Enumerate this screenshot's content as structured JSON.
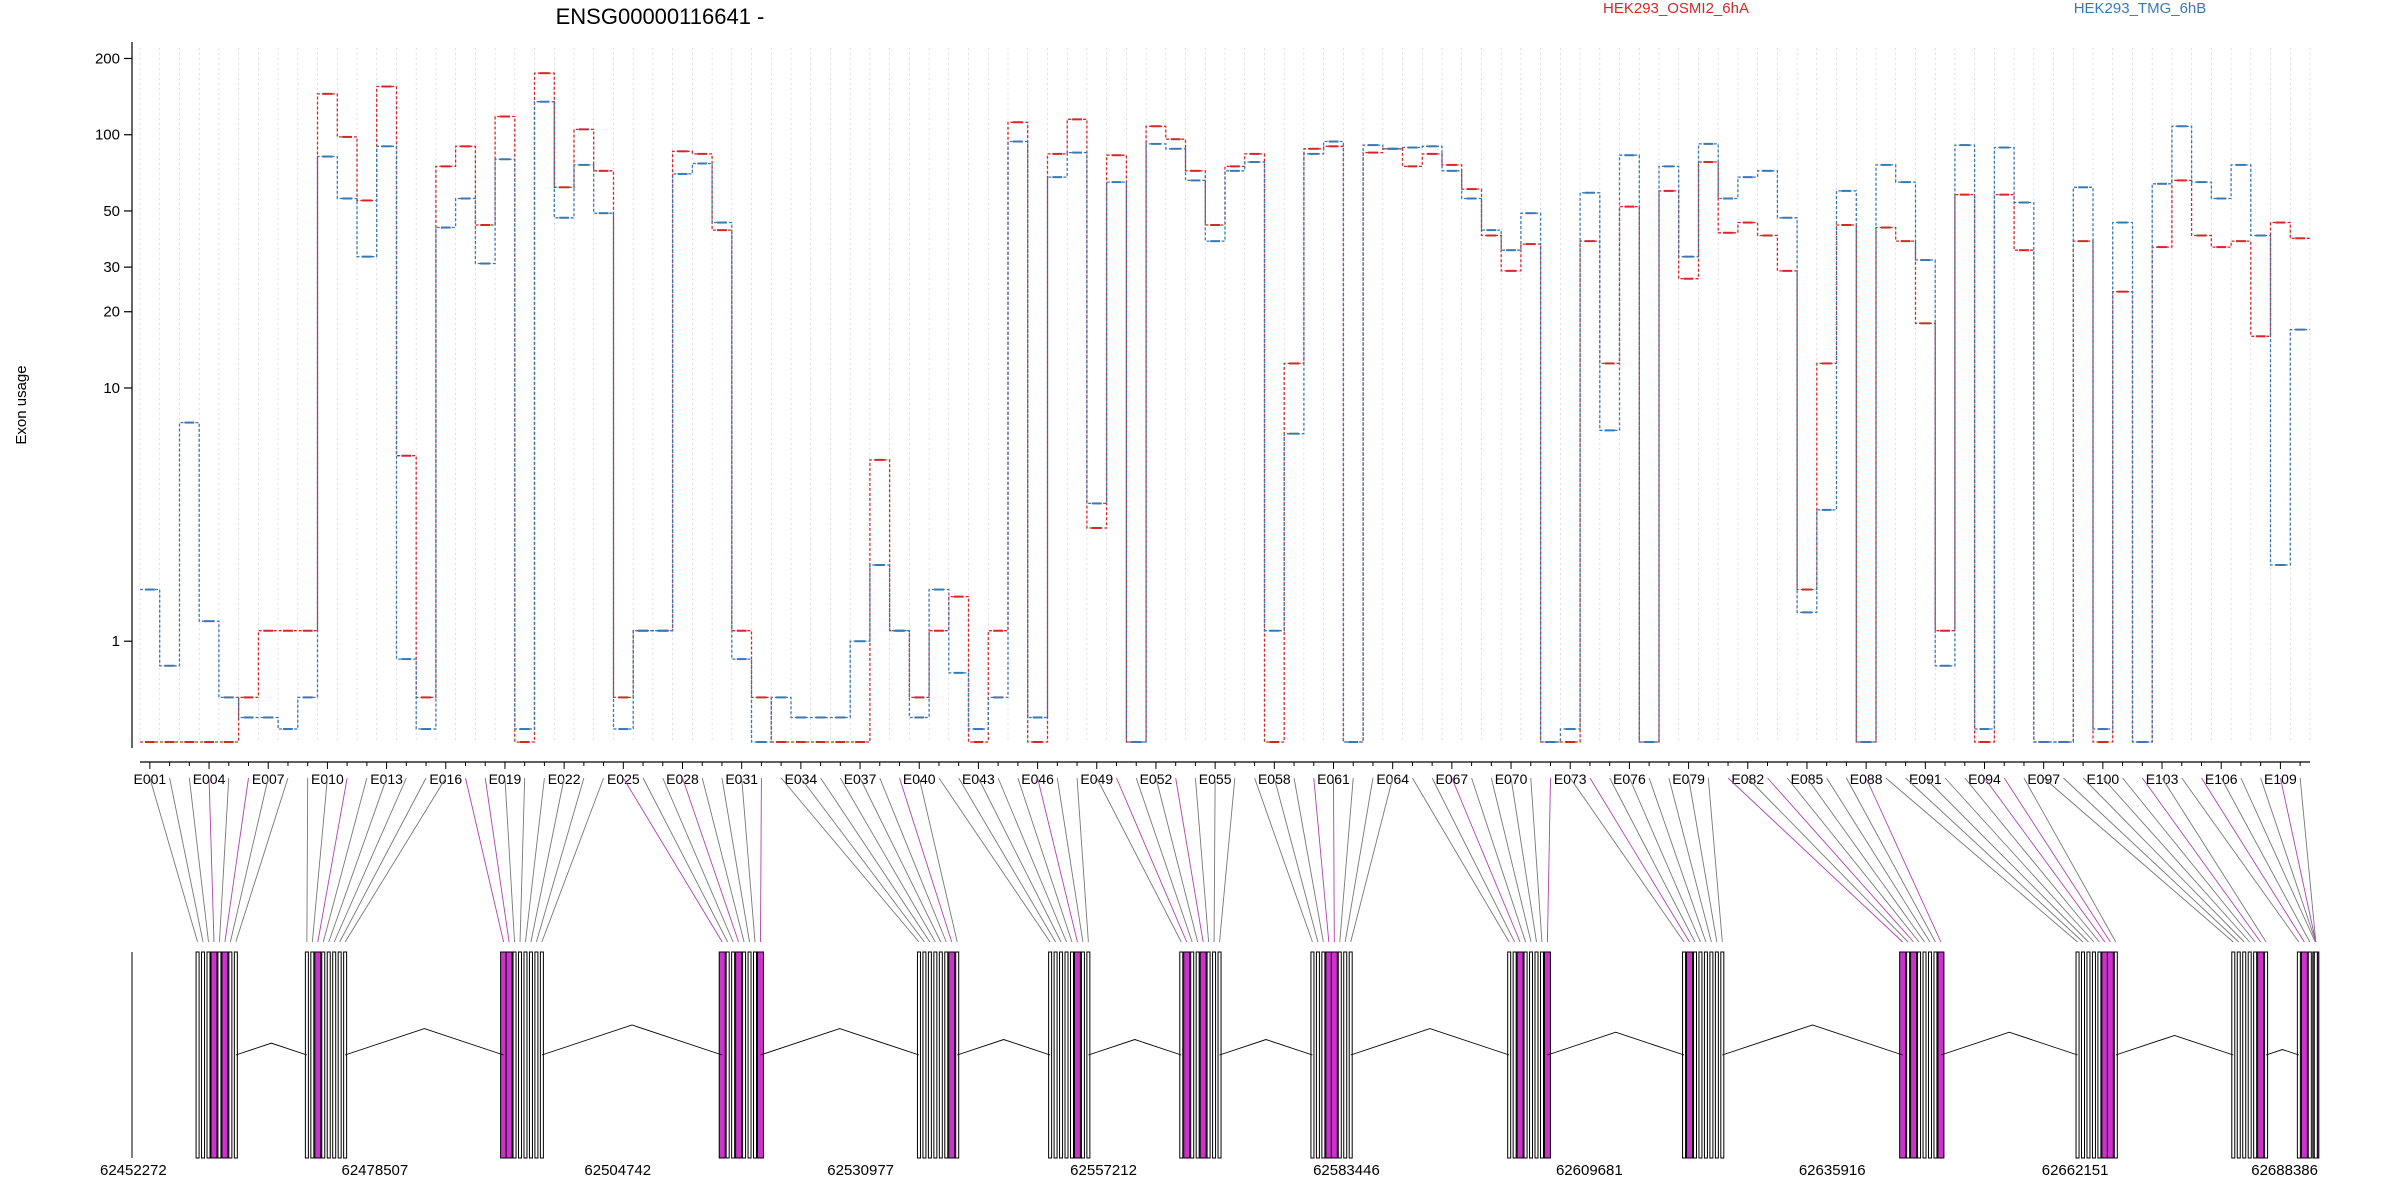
{
  "chart_data": {
    "type": "line",
    "title": "ENSG00000116641 -",
    "ylabel": "Exon usage",
    "yscale": "log",
    "ylim": [
      0.4,
      220
    ],
    "yticks": [
      1,
      10,
      20,
      30,
      50,
      100,
      200
    ],
    "series": [
      {
        "name": "HEK293_OSMI2_6hA",
        "color": "#d62728",
        "values": [
          0.4,
          0.4,
          0.4,
          0.4,
          0.4,
          0.6,
          1.1,
          1.1,
          1.1,
          145,
          98,
          55,
          155,
          5.4,
          0.6,
          75,
          90,
          44,
          118,
          0.4,
          175,
          62,
          105,
          72,
          0.6,
          1.1,
          1.1,
          86,
          84,
          42,
          1.1,
          0.6,
          0.4,
          0.4,
          0.4,
          0.4,
          0.4,
          5.2,
          1.1,
          0.6,
          1.1,
          1.5,
          0.4,
          1.1,
          112,
          0.4,
          84,
          115,
          2.8,
          83,
          0.4,
          108,
          96,
          72,
          44,
          75,
          84,
          0.4,
          12.5,
          88,
          90,
          0.4,
          85,
          88,
          75,
          84,
          76,
          61,
          40,
          29,
          37,
          0.4,
          0.4,
          38,
          12.5,
          52,
          0.4,
          60,
          27,
          78,
          41,
          45,
          40,
          29,
          1.6,
          12.5,
          44,
          0.4,
          43,
          38,
          18,
          1.1,
          58,
          0.4,
          58,
          35,
          0.4,
          0.4,
          38,
          0.4,
          24,
          0.4,
          36,
          66,
          40,
          36,
          38,
          16,
          45,
          39
        ]
      },
      {
        "name": "HEK293_TMG_6hB",
        "color": "#3a78b4",
        "values": [
          1.6,
          0.8,
          7.3,
          1.2,
          0.6,
          0.5,
          0.5,
          0.45,
          0.6,
          82,
          56,
          33,
          90,
          0.85,
          0.45,
          43,
          56,
          31,
          80,
          0.45,
          135,
          47,
          76,
          49,
          0.45,
          1.1,
          1.1,
          70,
          77,
          45,
          0.85,
          0.4,
          0.6,
          0.5,
          0.5,
          0.5,
          1.0,
          2.0,
          1.1,
          0.5,
          1.6,
          0.75,
          0.45,
          0.6,
          94,
          0.5,
          68,
          85,
          3.5,
          65,
          0.4,
          92,
          88,
          66,
          38,
          72,
          78,
          1.1,
          6.6,
          84,
          94,
          0.4,
          91,
          88,
          89,
          90,
          72,
          56,
          42,
          35,
          49,
          0.4,
          0.45,
          59,
          6.8,
          83,
          0.4,
          75,
          33,
          92,
          56,
          68,
          72,
          47,
          1.3,
          3.3,
          60,
          0.4,
          76,
          65,
          32,
          0.8,
          91,
          0.45,
          89,
          54,
          0.4,
          0.4,
          62,
          0.45,
          45,
          0.4,
          64,
          108,
          65,
          56,
          76,
          40,
          2.0,
          17
        ]
      }
    ],
    "exon_labels": [
      "E001",
      "E004",
      "E007",
      "E010",
      "E013",
      "E016",
      "E019",
      "E022",
      "E025",
      "E028",
      "E031",
      "E034",
      "E037",
      "E040",
      "E043",
      "E046",
      "E049",
      "E052",
      "E055",
      "E058",
      "E061",
      "E064",
      "E067",
      "E070",
      "E073",
      "E076",
      "E079",
      "E082",
      "E085",
      "E088",
      "E091",
      "E094",
      "E097",
      "E100",
      "E103",
      "E106",
      "E109"
    ],
    "genomic_ticks": [
      "62452272",
      "62478507",
      "62504742",
      "62530977",
      "62557212",
      "62583446",
      "62609681",
      "62635916",
      "62662151",
      "62688386"
    ]
  }
}
